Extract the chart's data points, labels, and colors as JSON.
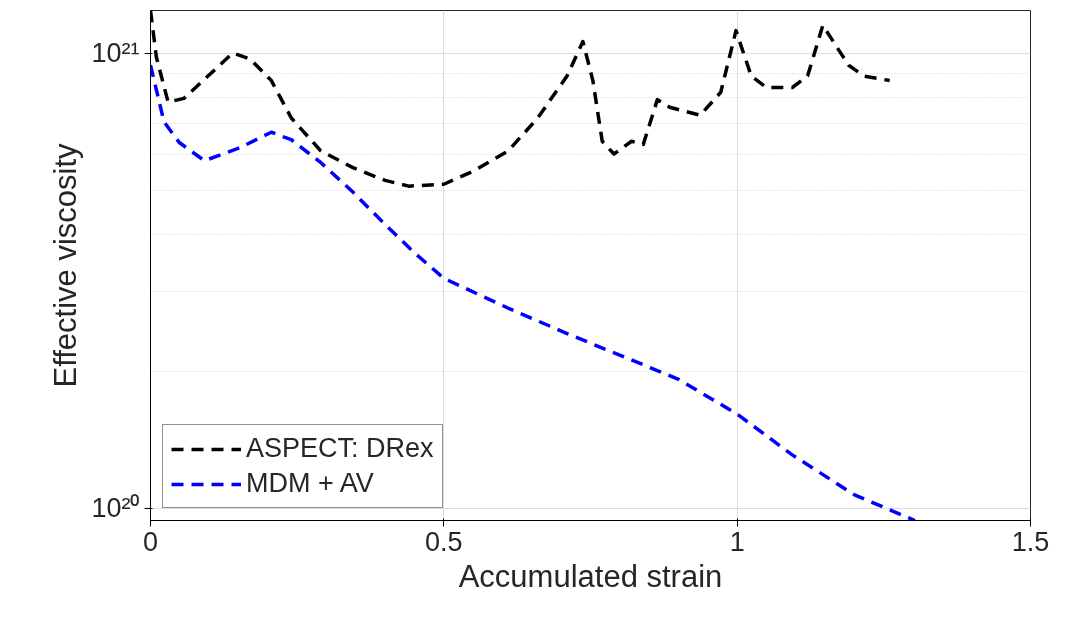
{
  "chart_data": {
    "type": "line",
    "xlabel": "Accumulated strain",
    "ylabel": "Effective viscosity",
    "log": "y",
    "grid": true,
    "legend": "bottom left",
    "line_style": "dashed",
    "marker": "none",
    "xlim": [
      0,
      1.5
    ],
    "xticks": [
      0,
      0.5,
      1,
      1.5
    ],
    "ylim": [
      9.4e+19,
      1.24e+21
    ],
    "yticks": [
      {
        "value": 1e+20,
        "label": "10²⁰"
      },
      {
        "value": 1e+21,
        "label": "10²¹"
      }
    ],
    "series": [
      {
        "name": "ASPECT: DRex",
        "color": "#000000",
        "x": [
          0,
          0.01,
          0.03,
          0.057,
          0.11,
          0.14,
          0.17,
          0.206,
          0.24,
          0.29,
          0.345,
          0.4,
          0.44,
          0.5,
          0.55,
          0.61,
          0.66,
          0.71,
          0.737,
          0.754,
          0.77,
          0.79,
          0.82,
          0.84,
          0.864,
          0.885,
          0.937,
          0.972,
          0.998,
          1.024,
          1.05,
          1.094,
          1.12,
          1.146,
          1.19,
          1.216,
          1.26
        ],
        "values": [
          1.24e+21,
          9.8e+20,
          7.8e+20,
          7.95e+20,
          9.2e+20,
          1e+21,
          9.7e+20,
          8.7e+20,
          7.2e+20,
          6.1e+20,
          5.6e+20,
          5.25e+20,
          5.1e+20,
          5.15e+20,
          5.5e+20,
          6.1e+20,
          7.2e+20,
          8.9e+20,
          1.06e+21,
          8.7e+20,
          6.4e+20,
          6e+20,
          6.4e+20,
          6.3e+20,
          7.9e+20,
          7.6e+20,
          7.3e+20,
          8.2e+20,
          1.12e+21,
          8.9e+20,
          8.4e+20,
          8.4e+20,
          8.9e+20,
          1.15e+21,
          9.4e+20,
          8.9e+20,
          8.7e+20
        ]
      },
      {
        "name": "MDM + AV",
        "color": "#0000ff",
        "x": [
          0,
          0.023,
          0.049,
          0.092,
          0.153,
          0.206,
          0.24,
          0.29,
          0.345,
          0.4,
          0.45,
          0.5,
          0.61,
          0.71,
          0.815,
          0.9,
          1.0,
          1.094,
          1.2,
          1.303
        ],
        "values": [
          9.4e+20,
          7.06e+20,
          6.36e+20,
          5.8e+20,
          6.2e+20,
          6.7e+20,
          6.45e+20,
          5.75e+20,
          4.95e+20,
          4.2e+20,
          3.64e+20,
          3.2e+20,
          2.75e+20,
          2.42e+20,
          2.13e+20,
          1.92e+20,
          1.61e+20,
          1.31e+20,
          1.07e+20,
          9.4e+19
        ]
      }
    ]
  }
}
